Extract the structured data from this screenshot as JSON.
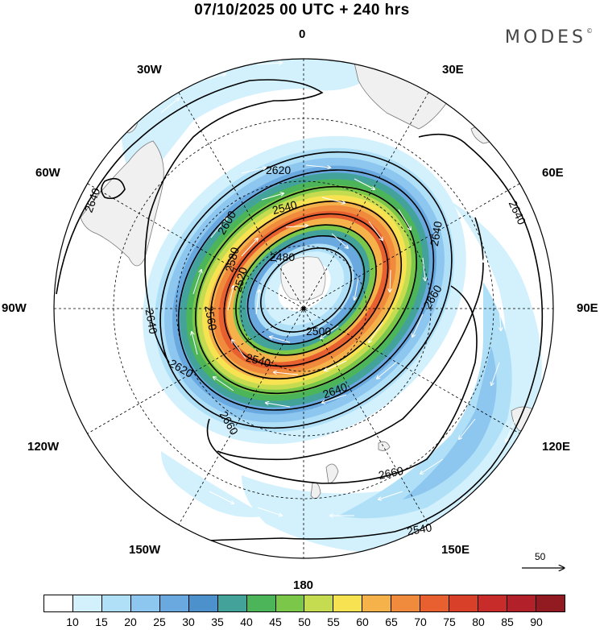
{
  "header": {
    "title": "07/10/2025  00 UTC  + 240 hrs",
    "brand": "MODES",
    "brand_mark": "©"
  },
  "map": {
    "projection": "south-polar-stereographic",
    "longitude_labels": {
      "top": "0",
      "upper_left": "30W",
      "upper_right": "30E",
      "left_upper": "60W",
      "right_upper": "60E",
      "left": "90W",
      "right": "90E",
      "lower_left": "120W",
      "lower_right": "120E",
      "bottom_left": "150W",
      "bottom_right": "150E",
      "bottom": "180"
    },
    "contour_labels": [
      "2640",
      "2620",
      "2600",
      "2580",
      "2560",
      "2540",
      "2520",
      "2500",
      "2480",
      "2660",
      "2640",
      "2620",
      "2540",
      "2640",
      "2660",
      "2660",
      "2640",
      "2540",
      "2640"
    ],
    "reference_vector": "50"
  },
  "colorbar": {
    "colors": [
      "#ffffff",
      "#d2f1fd",
      "#b0e0f8",
      "#8dc6ee",
      "#6aa9e0",
      "#4c91cc",
      "#43a39a",
      "#4cb55a",
      "#7ac74a",
      "#c6dc50",
      "#f7e352",
      "#f6b24a",
      "#f08a3d",
      "#e8602f",
      "#d9402a",
      "#c72b2a",
      "#b2212a",
      "#921b22"
    ],
    "ticks": [
      "10",
      "15",
      "20",
      "25",
      "30",
      "35",
      "40",
      "45",
      "50",
      "55",
      "60",
      "65",
      "70",
      "75",
      "80",
      "85",
      "90"
    ]
  }
}
